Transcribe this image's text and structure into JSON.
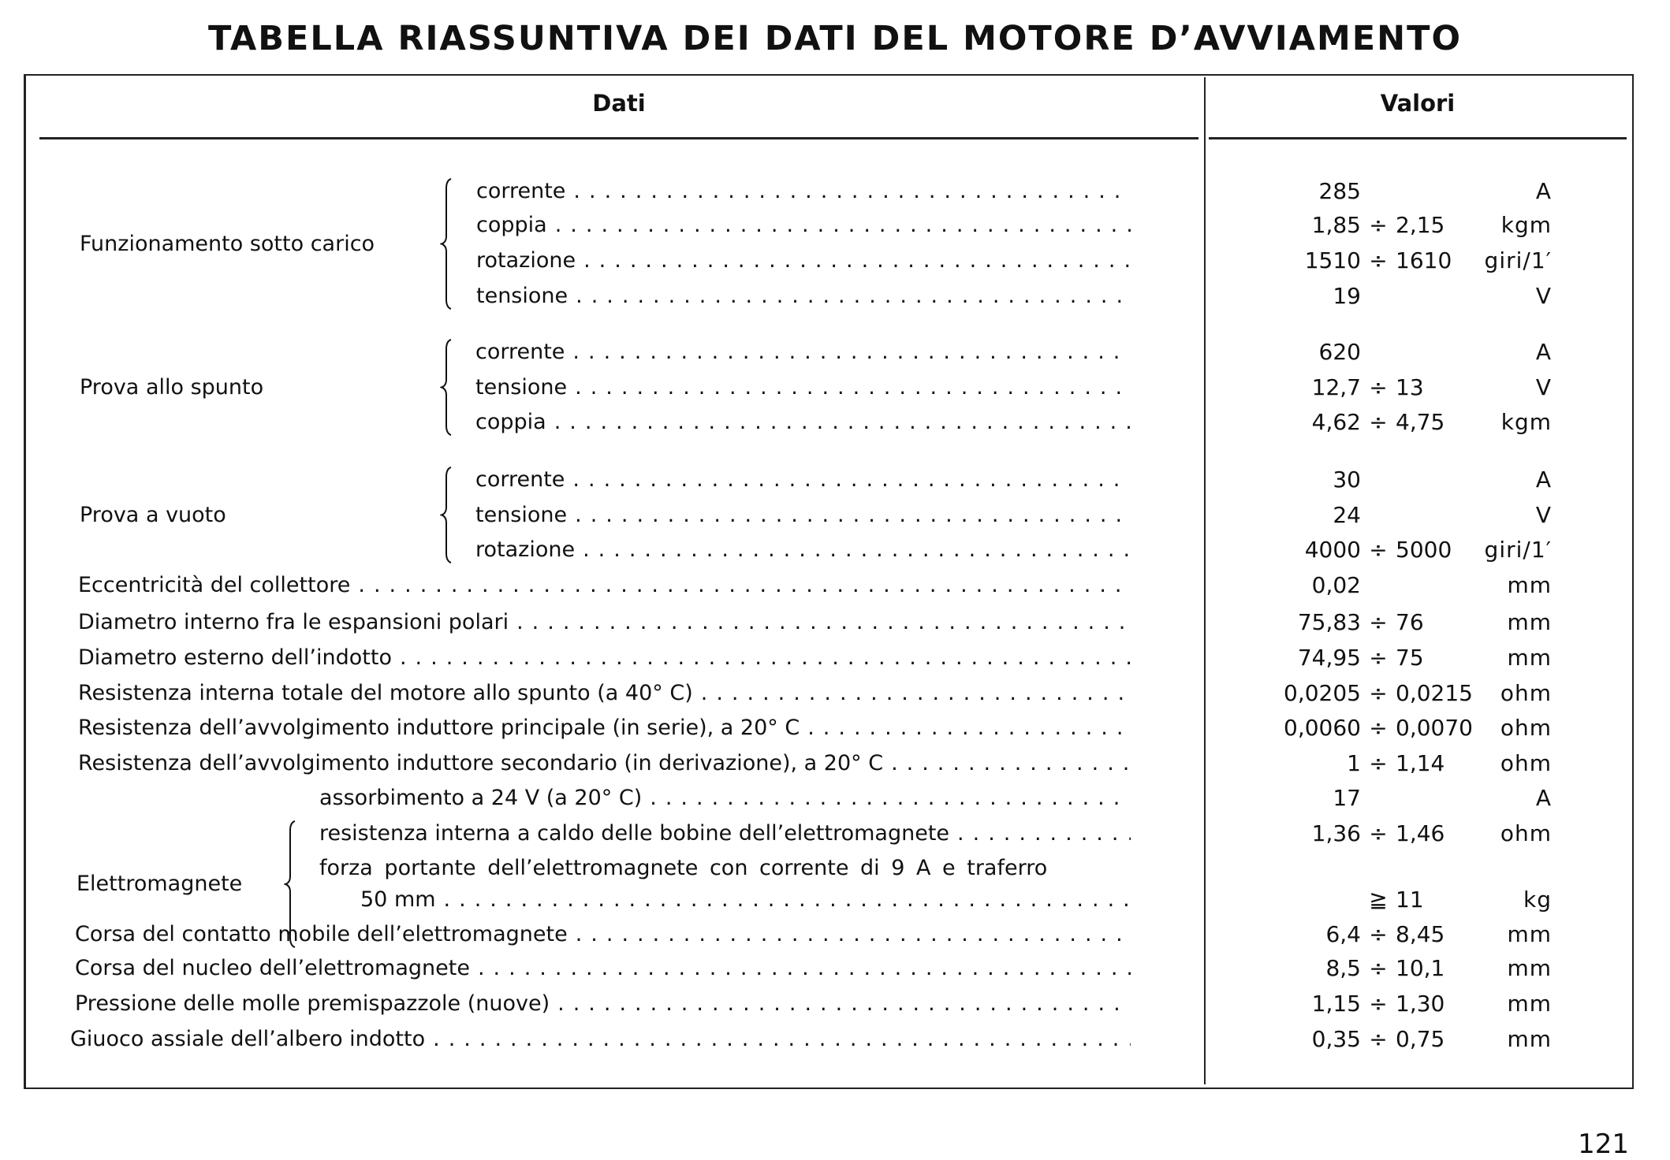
{
  "title": "TABELLA RIASSUNTIVA DEI DATI DEL MOTORE D’AVVIAMENTO",
  "headers": {
    "dati": "Dati",
    "valori": "Valori"
  },
  "groups": [
    {
      "label": "Funzionamento sotto carico",
      "rows": [
        0,
        1,
        2,
        3
      ]
    },
    {
      "label": "Prova allo spunto",
      "rows": [
        4,
        5,
        6
      ]
    },
    {
      "label": "Prova a vuoto",
      "rows": [
        7,
        8,
        9
      ]
    },
    {
      "label": "Elettromagnete",
      "rows": [
        17,
        18,
        19,
        20
      ]
    }
  ],
  "rows": [
    {
      "label": "corrente",
      "low": "285",
      "sep": "",
      "high": "",
      "unit": "A"
    },
    {
      "label": "coppia",
      "low": "1,85",
      "sep": "÷",
      "high": "2,15",
      "unit": "kgm"
    },
    {
      "label": "rotazione",
      "low": "1510",
      "sep": "÷",
      "high": "1610",
      "unit": "giri/1′"
    },
    {
      "label": "tensione",
      "low": "19",
      "sep": "",
      "high": "",
      "unit": "V"
    },
    {
      "label": "corrente",
      "low": "620",
      "sep": "",
      "high": "",
      "unit": "A"
    },
    {
      "label": "tensione",
      "low": "12,7",
      "sep": "÷",
      "high": "13",
      "unit": "V"
    },
    {
      "label": "coppia",
      "low": "4,62",
      "sep": "÷",
      "high": "4,75",
      "unit": "kgm"
    },
    {
      "label": "corrente",
      "low": "30",
      "sep": "",
      "high": "",
      "unit": "A"
    },
    {
      "label": "tensione",
      "low": "24",
      "sep": "",
      "high": "",
      "unit": "V"
    },
    {
      "label": "rotazione",
      "low": "4000",
      "sep": "÷",
      "high": "5000",
      "unit": "giri/1′"
    },
    {
      "label": "Eccentricità del collettore",
      "low": "0,02",
      "sep": "",
      "high": "",
      "unit": "mm"
    },
    {
      "label": "Diametro interno fra le espansioni polari",
      "low": "75,83",
      "sep": "÷",
      "high": "76",
      "unit": "mm"
    },
    {
      "label": "Diametro esterno dell’indotto",
      "low": "74,95",
      "sep": "÷",
      "high": "75",
      "unit": "mm"
    },
    {
      "label": "Resistenza interna totale del motore allo spunto (a 40° C)",
      "low": "0,0205",
      "sep": "÷",
      "high": "0,0215",
      "unit": "ohm"
    },
    {
      "label": "Resistenza dell’avvolgimento induttore principale (in serie), a 20° C",
      "low": "0,0060",
      "sep": "÷",
      "high": "0,0070",
      "unit": "ohm"
    },
    {
      "label": "Resistenza dell’avvolgimento induttore secondario (in derivazione), a 20° C",
      "low": "1",
      "sep": "÷",
      "high": "1,14",
      "unit": "ohm"
    },
    {
      "label": "assorbimento a 24 V (a 20° C)",
      "low": "17",
      "sep": "",
      "high": "",
      "unit": "A"
    },
    {
      "label": "resistenza interna a caldo delle bobine dell’elettromagnete",
      "low": "1,36",
      "sep": "÷",
      "high": "1,46",
      "unit": "ohm"
    },
    {
      "label": "forza portante dell’elettromagnete con corrente di 9 A e traferro",
      "low": "",
      "sep": "",
      "high": "",
      "unit": ""
    },
    {
      "label": "50 mm",
      "low": "",
      "sep": "≧",
      "high": "11",
      "unit": "kg"
    },
    {
      "label": "Corsa del contatto mobile dell’elettromagnete",
      "low": "6,4",
      "sep": "÷",
      "high": "8,45",
      "unit": "mm"
    },
    {
      "label": "Corsa del nucleo dell’elettromagnete",
      "low": "8,5",
      "sep": "÷",
      "high": "10,1",
      "unit": "mm"
    },
    {
      "label": "Pressione delle molle premispazzole (nuove)",
      "low": "1,15",
      "sep": "÷",
      "high": "1,30",
      "unit": "mm"
    },
    {
      "label": "Giuoco assiale dell’albero indotto",
      "low": "0,35",
      "sep": "÷",
      "high": "0,75",
      "unit": "mm"
    }
  ],
  "page_number": "121"
}
